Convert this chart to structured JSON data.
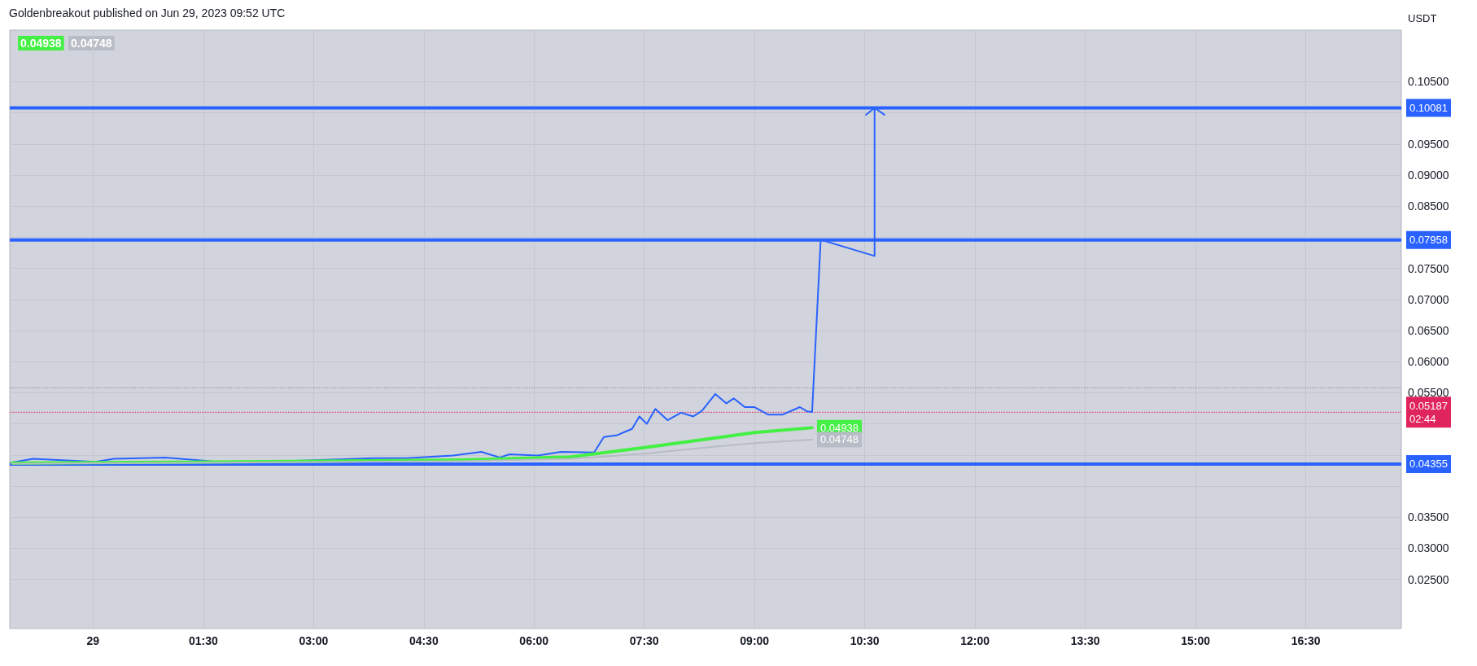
{
  "chart_data": {
    "type": "line",
    "title": "Goldenbreakout published on Jun 29, 2023 09:52 UTC",
    "ylabel": "USDT",
    "xlim": [
      "2023-06-28T22:52",
      "2023-06-29T17:48"
    ],
    "ylim": [
      0.0171,
      0.1133
    ],
    "xticks": [
      {
        "value": "2023-06-29T00:00",
        "label": "29"
      },
      {
        "value": "2023-06-29T01:30",
        "label": "01:30"
      },
      {
        "value": "2023-06-29T03:00",
        "label": "03:00"
      },
      {
        "value": "2023-06-29T04:30",
        "label": "04:30"
      },
      {
        "value": "2023-06-29T06:00",
        "label": "06:00"
      },
      {
        "value": "2023-06-29T07:30",
        "label": "07:30"
      },
      {
        "value": "2023-06-29T09:00",
        "label": "09:00"
      },
      {
        "value": "2023-06-29T10:30",
        "label": "10:30"
      },
      {
        "value": "2023-06-29T12:00",
        "label": "12:00"
      },
      {
        "value": "2023-06-29T13:30",
        "label": "13:30"
      },
      {
        "value": "2023-06-29T15:00",
        "label": "15:00"
      },
      {
        "value": "2023-06-29T16:30",
        "label": "16:30"
      }
    ],
    "yticks": [
      {
        "value": 0.025,
        "label": "0.02500"
      },
      {
        "value": 0.03,
        "label": "0.03000"
      },
      {
        "value": 0.035,
        "label": "0.03500"
      },
      {
        "value": 0.04,
        "label": null
      },
      {
        "value": 0.045,
        "label": null
      },
      {
        "value": 0.05,
        "label": null
      },
      {
        "value": 0.055,
        "label": "0.05500"
      },
      {
        "value": 0.06,
        "label": "0.06000"
      },
      {
        "value": 0.065,
        "label": "0.06500"
      },
      {
        "value": 0.07,
        "label": "0.07000"
      },
      {
        "value": 0.075,
        "label": "0.07500"
      },
      {
        "value": 0.08,
        "label": null
      },
      {
        "value": 0.085,
        "label": "0.08500"
      },
      {
        "value": 0.09,
        "label": "0.09000"
      },
      {
        "value": 0.095,
        "label": "0.09500"
      },
      {
        "value": 0.1,
        "label": null
      },
      {
        "value": 0.105,
        "label": "0.10500"
      }
    ],
    "grid": true,
    "marker": "none",
    "line_style": "solid",
    "series": [
      {
        "color": "#2962ff",
        "x": [
          "2023-06-28T22:54",
          "2023-06-28T23:11",
          "2023-06-29T00:02",
          "2023-06-29T00:17",
          "2023-06-29T00:59",
          "2023-06-29T01:41",
          "2023-06-29T02:05",
          "2023-06-29T02:51",
          "2023-06-29T03:49",
          "2023-06-29T04:16",
          "2023-06-29T04:54",
          "2023-06-29T05:17",
          "2023-06-29T05:32",
          "2023-06-29T05:40",
          "2023-06-29T06:03",
          "2023-06-29T06:22",
          "2023-06-29T06:49",
          "2023-06-29T06:57",
          "2023-06-29T07:08",
          "2023-06-29T07:20",
          "2023-06-29T07:26",
          "2023-06-29T07:32",
          "2023-06-29T07:39",
          "2023-06-29T07:49",
          "2023-06-29T08:00",
          "2023-06-29T08:10",
          "2023-06-29T08:17",
          "2023-06-29T08:28",
          "2023-06-29T08:37",
          "2023-06-29T08:43",
          "2023-06-29T08:52",
          "2023-06-29T09:00",
          "2023-06-29T09:11",
          "2023-06-29T09:23",
          "2023-06-29T09:37",
          "2023-06-29T09:43",
          "2023-06-29T09:47"
        ],
        "values": [
          0.0438,
          0.0444,
          0.0439,
          0.0444,
          0.0446,
          0.0439,
          0.0438,
          0.0441,
          0.0445,
          0.0445,
          0.0449,
          0.0455,
          0.0446,
          0.0451,
          0.0449,
          0.0455,
          0.0454,
          0.0479,
          0.0482,
          0.0492,
          0.0512,
          0.05,
          0.0524,
          0.0506,
          0.0518,
          0.0512,
          0.0521,
          0.0548,
          0.0533,
          0.0541,
          0.0527,
          0.0527,
          0.0515,
          0.0515,
          0.0527,
          0.052,
          0.0519
        ]
      },
      {
        "color": "#43f043",
        "x": [
          "2023-06-28T22:54",
          "2023-06-29T02:00",
          "2023-06-29T05:00",
          "2023-06-29T06:30",
          "2023-06-29T07:30",
          "2023-06-29T08:30",
          "2023-06-29T09:00",
          "2023-06-29T09:47"
        ],
        "values": [
          0.0437,
          0.0439,
          0.0442,
          0.0447,
          0.0462,
          0.0478,
          0.0486,
          0.04938
        ],
        "value_labels": [
          null,
          null,
          null,
          null,
          null,
          null,
          null,
          "0.04938"
        ]
      },
      {
        "color": "#b8bcc6",
        "x": [
          "2023-06-28T22:54",
          "2023-06-29T02:00",
          "2023-06-29T05:00",
          "2023-06-29T06:30",
          "2023-06-29T07:30",
          "2023-06-29T08:30",
          "2023-06-29T09:00",
          "2023-06-29T09:47"
        ],
        "values": [
          0.0436,
          0.0438,
          0.044,
          0.0444,
          0.0452,
          0.0464,
          0.0469,
          0.04748
        ],
        "value_labels": [
          null,
          null,
          null,
          null,
          null,
          null,
          null,
          "0.04748"
        ]
      },
      {
        "color": "#2962ff",
        "x": [
          "2023-06-29T09:47",
          "2023-06-29T09:54",
          "2023-06-29T10:38",
          "2023-06-29T10:38",
          "2023-06-29T10:31",
          "2023-06-29T10:38",
          "2023-06-29T10:46"
        ],
        "values": [
          0.0519,
          0.0796,
          0.077,
          0.1008,
          0.0997,
          0.1008,
          0.0997
        ]
      }
    ],
    "ref_lines": [
      {
        "axis": "y",
        "value": 0.10081,
        "label": "0.10081",
        "color": "#2962ff",
        "line_style": "solid"
      },
      {
        "axis": "y",
        "value": 0.07958,
        "label": "0.07958",
        "color": "#2962ff",
        "line_style": "solid"
      },
      {
        "axis": "y",
        "value": 0.04355,
        "label": "0.04355",
        "color": "#2962ff",
        "line_style": "solid"
      },
      {
        "axis": "y",
        "value": 0.05187,
        "label": "0.05187\n02:44",
        "color": "#e0245e",
        "line_style": "dotted"
      },
      {
        "axis": "y",
        "value": 0.0558,
        "label": null,
        "color": "#8a8f9c",
        "line_style": "dotted"
      }
    ],
    "annotations": [
      "0.04938",
      "0.04748"
    ]
  }
}
